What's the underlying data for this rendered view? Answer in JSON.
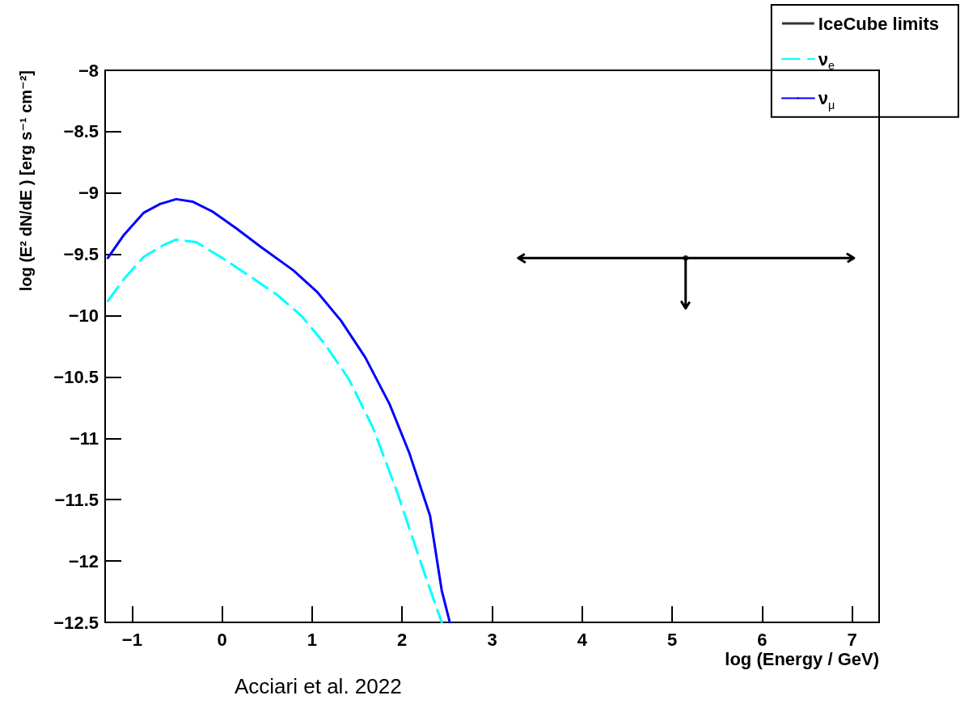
{
  "chart_data": {
    "type": "line",
    "xlabel": "log (Energy / GeV)",
    "ylabel": "log (E² dN/dE ) [erg s⁻¹ cm⁻²]",
    "annotations": [
      "Acciari et al. 2022"
    ],
    "xlim": [
      -1.3,
      7.3
    ],
    "xticks": [
      -1,
      0,
      1,
      2,
      3,
      4,
      5,
      6,
      7
    ],
    "ylim": [
      -12.5,
      -8
    ],
    "yticks": [
      -12.5,
      -12,
      -11.5,
      -11,
      -10.5,
      -10,
      -9.5,
      -9,
      -8.5,
      -8
    ],
    "grid": false,
    "legend": "top right",
    "marker": "none",
    "series": [
      {
        "name": "IceCube limits",
        "type": "scatter",
        "marker": "circle",
        "color": "#000000",
        "x": [
          5.15
        ],
        "values": [
          -9.53
        ],
        "errors": [
          [
            -9.94,
            -9.53
          ]
        ],
        "xerrors": [
          [
            3.29,
            7.02
          ]
        ]
      },
      {
        "name": "ν$_{e}$",
        "color": "#00ffff",
        "line_style": "dashed",
        "x": [
          -1.27,
          -1.09,
          -0.87,
          -0.64,
          -0.51,
          -0.29,
          -0.02,
          0.25,
          0.61,
          0.88,
          1.14,
          1.41,
          1.68,
          1.95,
          2.22,
          2.44
        ],
        "values": [
          -9.88,
          -9.7,
          -9.52,
          -9.42,
          -9.38,
          -9.4,
          -9.52,
          -9.65,
          -9.83,
          -10.0,
          -10.23,
          -10.52,
          -10.92,
          -11.45,
          -12.04,
          -12.5
        ]
      },
      {
        "name": "ν$_{μ}$",
        "color": "#0000ff",
        "line_style": "solid",
        "x": [
          -1.27,
          -1.09,
          -0.87,
          -0.69,
          -0.51,
          -0.33,
          -0.11,
          0.16,
          0.43,
          0.79,
          1.06,
          1.32,
          1.59,
          1.86,
          2.08,
          2.31,
          2.44,
          2.53
        ],
        "values": [
          -9.53,
          -9.34,
          -9.16,
          -9.09,
          -9.05,
          -9.07,
          -9.15,
          -9.29,
          -9.44,
          -9.63,
          -9.81,
          -10.04,
          -10.34,
          -10.72,
          -11.12,
          -11.63,
          -12.24,
          -12.5
        ]
      }
    ]
  }
}
